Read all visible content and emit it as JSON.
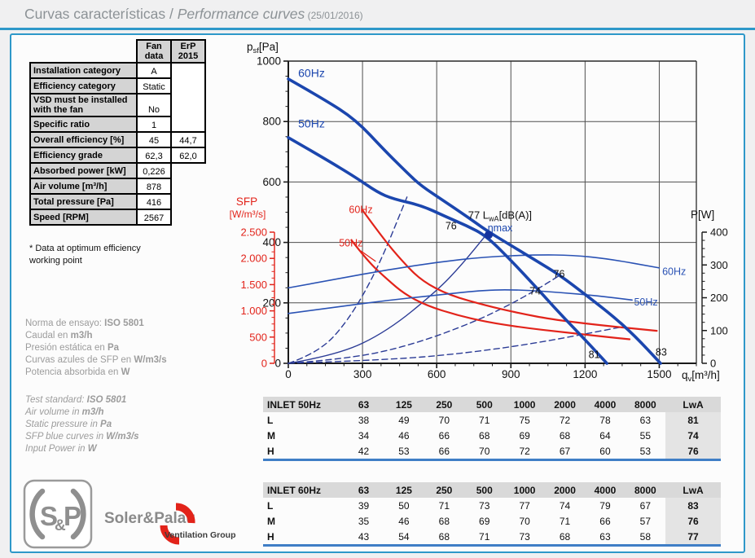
{
  "header": {
    "title_es": "Curvas características",
    "sep": " / ",
    "title_en": "Performance curves",
    "date": " (25/01/2016)"
  },
  "fan_table": {
    "col_headers": [
      "Fan data",
      "ErP 2015"
    ],
    "rows": [
      {
        "label": "Installation category",
        "fan": "A"
      },
      {
        "label": "Efficiency category",
        "fan": "Static"
      },
      {
        "label": "VSD must be installed with the fan",
        "fan": "No"
      },
      {
        "label": "Specific ratio",
        "fan": "1"
      },
      {
        "label": "Overall efficiency [%]",
        "fan": "45",
        "erp": "44,7"
      },
      {
        "label": "Efficiency grade",
        "fan": "62,3",
        "erp": "62,0"
      },
      {
        "label": "Absorbed power [kW]",
        "fan": "0,226"
      },
      {
        "label": "Air volume [m³/h]",
        "fan": "878"
      },
      {
        "label": "Total pressure [Pa]",
        "fan": "416"
      },
      {
        "label": "Speed [RPM]",
        "fan": "2567"
      }
    ],
    "footnote": "* Data at optimum efficiency working point"
  },
  "notes_es": [
    {
      "pre": "Norma de ensayo: ",
      "bold": "ISO 5801"
    },
    {
      "pre": "Caudal en ",
      "bold": "m3/h"
    },
    {
      "pre": "Presión estática en ",
      "bold": "Pa"
    },
    {
      "pre": "Curvas azules de SFP en ",
      "bold": "W/m3/s"
    },
    {
      "pre": "Potencia absorbida en ",
      "bold": "W"
    }
  ],
  "notes_en": [
    {
      "pre": "Test standard: ",
      "bold": "ISO 5801"
    },
    {
      "pre": "Air volume in ",
      "bold": "m3/h"
    },
    {
      "pre": "Static pressure in ",
      "bold": "Pa"
    },
    {
      "pre": "SFP blue curves in ",
      "bold": "W/m3/s"
    },
    {
      "pre": "Input Power in ",
      "bold": "W"
    }
  ],
  "chart_data": {
    "type": "line",
    "x_axis": {
      "label_main": "q",
      "label_sub": "v",
      "label_unit": "[m³/h]",
      "ticks": [
        0,
        300,
        600,
        900,
        1200,
        1500
      ],
      "max": 1650,
      "minor_step": 75
    },
    "y_axis_pressure": {
      "label_main": "p",
      "label_sub": "sf",
      "label_unit": "[Pa]",
      "ticks": [
        0,
        200,
        400,
        600,
        800,
        1000
      ],
      "max": 1000,
      "minor_step": 50
    },
    "y_axis_power": {
      "label": "P[W]",
      "ticks": [
        0,
        100,
        200,
        300,
        400
      ],
      "max": 400,
      "minor_step": 25
    },
    "y_axis_sfp": {
      "label_line1": "SFP",
      "label_line2": "[W/m³/s]",
      "tick_labels": [
        "0",
        "500",
        "1.000",
        "1.500",
        "2.000",
        "2.500"
      ],
      "tick_values": [
        0,
        500,
        1000,
        1500,
        2000,
        2500
      ],
      "max": 2500,
      "minor_step": 125
    },
    "series": [
      {
        "name": "system-line-h",
        "axis": "pa",
        "style": "dashed",
        "color": "#2c3c96",
        "points": [
          [
            0,
            0
          ],
          [
            120,
            34
          ],
          [
            240,
            138
          ],
          [
            360,
            310
          ],
          [
            480,
            550
          ]
        ]
      },
      {
        "name": "system-line-m",
        "axis": "pa",
        "style": "dashed",
        "color": "#2c3c96",
        "points": [
          [
            0,
            0
          ],
          [
            250,
            15
          ],
          [
            500,
            61
          ],
          [
            750,
            136
          ],
          [
            900,
            196
          ],
          [
            1007,
            245
          ],
          [
            1099,
            292
          ]
        ]
      },
      {
        "name": "system-line-l",
        "axis": "pa",
        "style": "dashed",
        "color": "#2c3c96",
        "points": [
          [
            0,
            0
          ],
          [
            400,
            11
          ],
          [
            700,
            32
          ],
          [
            1000,
            66
          ],
          [
            1360,
            122
          ]
        ]
      },
      {
        "name": "system-line-etamax",
        "axis": "pa",
        "style": "solid-thin",
        "color": "#2c3c96",
        "points": [
          [
            0,
            0
          ],
          [
            200,
            27
          ],
          [
            400,
            106
          ],
          [
            600,
            239
          ],
          [
            700,
            325
          ],
          [
            800,
            425
          ]
        ]
      },
      {
        "name": "sfp-60hz",
        "axis": "sfp",
        "style": "red",
        "color": "#e2231a",
        "points": [
          [
            300,
            2920
          ],
          [
            380,
            2400
          ],
          [
            460,
            1950
          ],
          [
            540,
            1570
          ],
          [
            650,
            1300
          ],
          [
            800,
            1100
          ],
          [
            930,
            960
          ],
          [
            1060,
            840
          ],
          [
            1250,
            730
          ],
          [
            1490,
            620
          ]
        ]
      },
      {
        "name": "sfp-50hz",
        "axis": "sfp",
        "style": "red",
        "color": "#e2231a",
        "points": [
          [
            255,
            2350
          ],
          [
            320,
            1950
          ],
          [
            400,
            1600
          ],
          [
            470,
            1320
          ],
          [
            560,
            1100
          ],
          [
            680,
            920
          ],
          [
            800,
            790
          ],
          [
            950,
            680
          ],
          [
            1100,
            600
          ],
          [
            1250,
            520
          ],
          [
            1380,
            458
          ]
        ]
      },
      {
        "name": "sfp-50hz-leader",
        "axis": "pa",
        "style": "red-thin",
        "color": "#e2231a",
        "points": [
          [
            293,
            372
          ],
          [
            352,
            338
          ]
        ]
      },
      {
        "name": "power-60hz",
        "axis": "p",
        "style": "thin",
        "color": "#2a52b4",
        "points": [
          [
            0,
            230
          ],
          [
            200,
            258
          ],
          [
            400,
            285
          ],
          [
            600,
            308
          ],
          [
            800,
            325
          ],
          [
            1000,
            331
          ],
          [
            1150,
            330
          ],
          [
            1300,
            318
          ],
          [
            1500,
            291
          ]
        ]
      },
      {
        "name": "power-50hz",
        "axis": "p",
        "style": "thin",
        "color": "#2a52b4",
        "points": [
          [
            0,
            152
          ],
          [
            200,
            172
          ],
          [
            400,
            192
          ],
          [
            600,
            208
          ],
          [
            800,
            224
          ],
          [
            950,
            224
          ],
          [
            1100,
            216
          ],
          [
            1250,
            206
          ],
          [
            1390,
            193
          ]
        ]
      },
      {
        "name": "pressure-60hz",
        "axis": "pa",
        "style": "thick",
        "color": "#1b46ae",
        "points": [
          [
            0,
            941
          ],
          [
            140,
            876
          ],
          [
            273,
            806
          ],
          [
            391,
            703
          ],
          [
            480,
            631
          ],
          [
            536,
            588
          ],
          [
            635,
            534
          ],
          [
            720,
            487
          ],
          [
            800,
            440
          ],
          [
            900,
            390
          ],
          [
            1000,
            341
          ],
          [
            1099,
            291
          ],
          [
            1200,
            228
          ],
          [
            1310,
            158
          ],
          [
            1400,
            92
          ],
          [
            1505,
            0
          ]
        ]
      },
      {
        "name": "pressure-50hz",
        "axis": "pa",
        "style": "thick",
        "color": "#1b46ae",
        "points": [
          [
            0,
            747
          ],
          [
            140,
            681
          ],
          [
            273,
            615
          ],
          [
            360,
            566
          ],
          [
            424,
            544
          ],
          [
            536,
            523
          ],
          [
            635,
            486
          ],
          [
            720,
            456
          ],
          [
            800,
            422
          ],
          [
            900,
            341
          ],
          [
            1007,
            247
          ],
          [
            1100,
            163
          ],
          [
            1200,
            78
          ],
          [
            1288,
            0
          ]
        ]
      }
    ],
    "working_point": {
      "qv": 810,
      "pressure": 425,
      "color": "#15339e"
    },
    "annotation_sound_power": {
      "prefix": "77 L",
      "sub": "wA",
      "suffix": "[dB(A)]",
      "x": 727,
      "y": 478,
      "color": "#111111"
    },
    "labels": [
      {
        "text": "60Hz",
        "x": 40,
        "y": 948,
        "color": "#1b46ae",
        "size": 14,
        "anchor": "start",
        "name": "pressure-60hz-label"
      },
      {
        "text": "50Hz",
        "x": 40,
        "y": 780,
        "color": "#1b46ae",
        "size": 14,
        "anchor": "start",
        "name": "pressure-50hz-label"
      },
      {
        "text": "60Hz",
        "x": 245,
        "y": 497,
        "color": "#e2231a",
        "size": 12.5,
        "anchor": "start",
        "name": "sfp-60hz-label"
      },
      {
        "text": "50Hz",
        "x": 205,
        "y": 387,
        "color": "#e2231a",
        "size": 12.5,
        "anchor": "start",
        "name": "sfp-50hz-label"
      },
      {
        "text": "76",
        "x": 658,
        "y": 443,
        "color": "#111111",
        "size": 12.5,
        "anchor": "middle",
        "name": "lwa-h-50hz-label"
      },
      {
        "text": "ηmax",
        "x": 806,
        "y": 437,
        "color": "#1b46ae",
        "size": 12.5,
        "anchor": "start",
        "name": "etamax-label"
      },
      {
        "text": "76",
        "x": 1095,
        "y": 285,
        "color": "#111111",
        "size": 12.5,
        "anchor": "middle",
        "name": "lwa-m-60hz-label"
      },
      {
        "text": "74",
        "x": 998,
        "y": 228,
        "color": "#111111",
        "size": 12.5,
        "anchor": "middle",
        "name": "lwa-m-50hz-label"
      },
      {
        "text": "81",
        "x": 1237,
        "y": 18,
        "color": "#111111",
        "size": 12.5,
        "anchor": "middle",
        "name": "lwa-l-50hz-label"
      },
      {
        "text": "83",
        "x": 1508,
        "y": 25,
        "color": "#111111",
        "size": 12.5,
        "anchor": "middle",
        "name": "lwa-l-60hz-label"
      },
      {
        "text": "60Hz",
        "x": 1512,
        "y": 292,
        "color": "#2a52b4",
        "size": 12.5,
        "anchor": "start",
        "name": "power-60hz-label"
      },
      {
        "text": "50Hz",
        "x": 1398,
        "y": 192,
        "color": "#2a52b4",
        "size": 12.5,
        "anchor": "start",
        "name": "power-50hz-label"
      }
    ]
  },
  "acoustic_tables": [
    {
      "title": "INLET 50Hz",
      "bands": [
        "63",
        "125",
        "250",
        "500",
        "1000",
        "2000",
        "4000",
        "8000"
      ],
      "lwa_header": "LwA",
      "rows": [
        {
          "label": "L",
          "values": [
            38,
            49,
            70,
            71,
            75,
            72,
            78,
            63
          ],
          "lwa": 81
        },
        {
          "label": "M",
          "values": [
            34,
            46,
            66,
            68,
            69,
            68,
            64,
            55
          ],
          "lwa": 74
        },
        {
          "label": "H",
          "values": [
            42,
            53,
            66,
            70,
            72,
            67,
            60,
            53
          ],
          "lwa": 76
        }
      ]
    },
    {
      "title": "INLET 60Hz",
      "bands": [
        "63",
        "125",
        "250",
        "500",
        "1000",
        "2000",
        "4000",
        "8000"
      ],
      "lwa_header": "LwA",
      "rows": [
        {
          "label": "L",
          "values": [
            39,
            50,
            71,
            73,
            77,
            74,
            79,
            67
          ],
          "lwa": 83
        },
        {
          "label": "M",
          "values": [
            35,
            46,
            68,
            69,
            70,
            71,
            66,
            57
          ],
          "lwa": 76
        },
        {
          "label": "H",
          "values": [
            43,
            54,
            68,
            71,
            73,
            68,
            63,
            58
          ],
          "lwa": 77
        }
      ]
    }
  ],
  "footer": {
    "logo_s": "S",
    "logo_amp": "&",
    "logo_p": "P",
    "brand": "Soler&Palau",
    "sub_brand": "Ventilation Group"
  },
  "colors": {
    "accent_blue": "#2e98c9",
    "table_line_blue": "#3f7ec6",
    "curve_blue": "#1b46ae",
    "thin_blue": "#2a52b4",
    "navy": "#2c3c96",
    "red": "#e2231a"
  }
}
